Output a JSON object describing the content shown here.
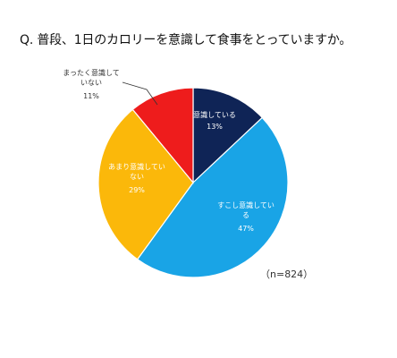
{
  "question": "Q. 普段、1日のカロリーを意識して食事をとっていますか。",
  "sample_size": "（n=824）",
  "chart_data": {
    "type": "pie",
    "title": "",
    "start_angle_deg": 0,
    "direction": "clockwise",
    "slices": [
      {
        "name_lines": [
          "意識している"
        ],
        "value": 13,
        "value_label": "13%",
        "color": "#0f2456",
        "label_color": "#ffffff"
      },
      {
        "name_lines": [
          "すこし意識してい",
          "る"
        ],
        "value": 47,
        "value_label": "47%",
        "color": "#19a4e6",
        "label_color": "#ffffff"
      },
      {
        "name_lines": [
          "あまり意識してい",
          "ない"
        ],
        "value": 29,
        "value_label": "29%",
        "color": "#fbb80a",
        "label_color": "#ffffff"
      },
      {
        "name_lines": [
          "まったく意識して",
          "いない"
        ],
        "value": 11,
        "value_label": "11%",
        "color": "#ee1c1c",
        "label_color": "#333333"
      }
    ]
  }
}
